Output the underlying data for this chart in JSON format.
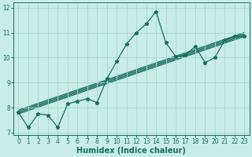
{
  "xlabel": "Humidex (Indice chaleur)",
  "bg_color": "#c8ece6",
  "line_color": "#1a6e60",
  "grid_color": "#a8d8d0",
  "xlim": [
    -0.5,
    23.5
  ],
  "ylim": [
    6.9,
    12.2
  ],
  "yticks": [
    7,
    8,
    9,
    10,
    11,
    12
  ],
  "xticks": [
    0,
    1,
    2,
    3,
    4,
    5,
    6,
    7,
    8,
    9,
    10,
    11,
    12,
    13,
    14,
    15,
    16,
    17,
    18,
    19,
    20,
    21,
    22,
    23
  ],
  "main_line": {
    "x": [
      0,
      1,
      2,
      3,
      4,
      5,
      6,
      7,
      8,
      9,
      10,
      11,
      12,
      13,
      14,
      15,
      16,
      17,
      18,
      19,
      20,
      21,
      22,
      23
    ],
    "y": [
      7.8,
      7.2,
      7.75,
      7.7,
      7.2,
      8.15,
      8.25,
      8.35,
      8.2,
      9.15,
      9.85,
      10.55,
      11.0,
      11.35,
      11.85,
      10.6,
      10.05,
      10.1,
      10.45,
      9.8,
      10.0,
      10.7,
      10.85,
      10.85
    ]
  },
  "trend_lines": [
    {
      "x": [
        0,
        23
      ],
      "y": [
        7.75,
        10.85
      ]
    },
    {
      "x": [
        0,
        23
      ],
      "y": [
        7.8,
        10.9
      ]
    },
    {
      "x": [
        0,
        23
      ],
      "y": [
        7.85,
        10.95
      ]
    },
    {
      "x": [
        0,
        23
      ],
      "y": [
        7.9,
        11.0
      ]
    }
  ],
  "xlabel_fontsize": 7,
  "tick_fontsize": 5.5,
  "linewidth": 0.9,
  "markersize": 3.5
}
